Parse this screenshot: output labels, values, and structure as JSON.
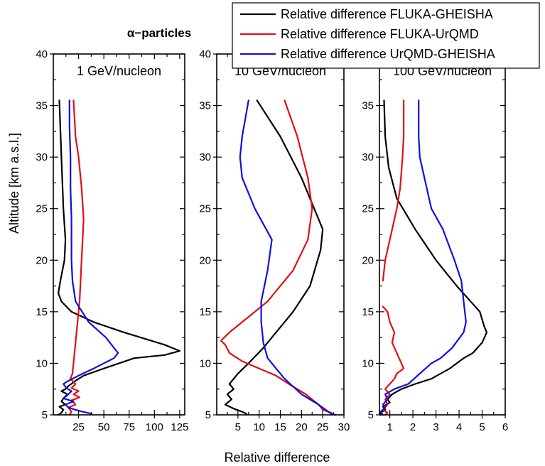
{
  "figure": {
    "title": "α−particles",
    "xlabel": "Relative difference",
    "ylabel": "Altitude [km a.s.l.]",
    "legend": [
      {
        "label": "Relative difference FLUKA-GHEISHA",
        "color": "#000000"
      },
      {
        "label": "Relative difference FLUKA-UrQMD",
        "color": "#e01010"
      },
      {
        "label": "Relative difference UrQMD-GHEISHA",
        "color": "#1010e0"
      }
    ]
  },
  "chart_data": [
    {
      "type": "line",
      "panel_label": "1 GeV/nucleon",
      "xlim": [
        0,
        130
      ],
      "ylim": [
        5,
        40
      ],
      "xticks": [
        25,
        50,
        75,
        100,
        125
      ],
      "yticks": [
        5,
        10,
        15,
        20,
        25,
        30,
        35,
        40
      ],
      "series": [
        {
          "name": "Relative difference FLUKA-GHEISHA",
          "color": "#000000",
          "points": [
            [
              6,
              35.5
            ],
            [
              8,
              30
            ],
            [
              10,
              25
            ],
            [
              12,
              22
            ],
            [
              11,
              20
            ],
            [
              7,
              18
            ],
            [
              5,
              16.8
            ],
            [
              8,
              16
            ],
            [
              18,
              15
            ],
            [
              40,
              14
            ],
            [
              70,
              13
            ],
            [
              110,
              11.8
            ],
            [
              125,
              11.2
            ],
            [
              110,
              10.8
            ],
            [
              80,
              10.5
            ],
            [
              50,
              9.5
            ],
            [
              30,
              8.8
            ],
            [
              22,
              8.3
            ],
            [
              15,
              7.8
            ],
            [
              12,
              7.5
            ],
            [
              8,
              7.3
            ],
            [
              14,
              7
            ],
            [
              10,
              6.6
            ],
            [
              8,
              6.3
            ],
            [
              12,
              6
            ],
            [
              6,
              5.8
            ],
            [
              10,
              5.5
            ],
            [
              8,
              5.2
            ],
            [
              5,
              5
            ]
          ]
        },
        {
          "name": "Relative difference FLUKA-UrQMD",
          "color": "#e01010",
          "points": [
            [
              20,
              35.5
            ],
            [
              22,
              32
            ],
            [
              25,
              30
            ],
            [
              28,
              27
            ],
            [
              30,
              24
            ],
            [
              28,
              20
            ],
            [
              26,
              16
            ],
            [
              22,
              12
            ],
            [
              19,
              9
            ],
            [
              17,
              8.5
            ],
            [
              22,
              8
            ],
            [
              18,
              7.6
            ],
            [
              25,
              7.3
            ],
            [
              20,
              7
            ],
            [
              26,
              6.7
            ],
            [
              18,
              6.4
            ],
            [
              22,
              6
            ],
            [
              15,
              5.7
            ],
            [
              18,
              5.3
            ],
            [
              16,
              5
            ]
          ]
        },
        {
          "name": "Relative difference UrQMD-GHEISHA",
          "color": "#1010e0",
          "points": [
            [
              16,
              35.5
            ],
            [
              16,
              33
            ],
            [
              17,
              30
            ],
            [
              17,
              27
            ],
            [
              18,
              24
            ],
            [
              18,
              20
            ],
            [
              19,
              18
            ],
            [
              22,
              16
            ],
            [
              35,
              14
            ],
            [
              52,
              12.5
            ],
            [
              64,
              11
            ],
            [
              60,
              10.5
            ],
            [
              40,
              9.5
            ],
            [
              25,
              8.8
            ],
            [
              15,
              8.3
            ],
            [
              10,
              8
            ],
            [
              13,
              7.6
            ],
            [
              18,
              7.3
            ],
            [
              15,
              7
            ],
            [
              10,
              6.6
            ],
            [
              20,
              6.3
            ],
            [
              12,
              6
            ],
            [
              15,
              5.7
            ],
            [
              25,
              5.4
            ],
            [
              38,
              5.1
            ]
          ]
        }
      ]
    },
    {
      "type": "line",
      "panel_label": "10 GeV/nucleon",
      "xlim": [
        0,
        30
      ],
      "ylim": [
        5,
        40
      ],
      "xticks": [
        5,
        10,
        15,
        20,
        25,
        30
      ],
      "yticks": [
        5,
        10,
        15,
        20,
        25,
        30,
        35,
        40
      ],
      "series": [
        {
          "name": "Relative difference FLUKA-GHEISHA",
          "color": "#000000",
          "points": [
            [
              9.5,
              35.5
            ],
            [
              15,
              32
            ],
            [
              20,
              28
            ],
            [
              23,
              25
            ],
            [
              25,
              23
            ],
            [
              24.5,
              21
            ],
            [
              22,
              17.5
            ],
            [
              18,
              15
            ],
            [
              14,
              13
            ],
            [
              11,
              11.5
            ],
            [
              7.5,
              10
            ],
            [
              5,
              9
            ],
            [
              4,
              8.5
            ],
            [
              3,
              8
            ],
            [
              4,
              7.5
            ],
            [
              2.5,
              7
            ],
            [
              3.5,
              6.5
            ],
            [
              2,
              6
            ],
            [
              4,
              5.6
            ],
            [
              6,
              5.3
            ],
            [
              7,
              5.1
            ],
            [
              7,
              5
            ]
          ]
        },
        {
          "name": "Relative difference FLUKA-UrQMD",
          "color": "#e01010",
          "points": [
            [
              16,
              35.5
            ],
            [
              19,
              32
            ],
            [
              21.5,
              28
            ],
            [
              22.5,
              25
            ],
            [
              21.5,
              22
            ],
            [
              18,
              19
            ],
            [
              12,
              16
            ],
            [
              6,
              14
            ],
            [
              3,
              13
            ],
            [
              1,
              12.2
            ],
            [
              2,
              11.8
            ],
            [
              3,
              11
            ],
            [
              6,
              10.2
            ],
            [
              10,
              9.5
            ],
            [
              14,
              8.8
            ],
            [
              17,
              8
            ],
            [
              21,
              7
            ],
            [
              24,
              6
            ],
            [
              25,
              5.5
            ],
            [
              27,
              5.2
            ],
            [
              27,
              5
            ]
          ]
        },
        {
          "name": "Relative difference UrQMD-GHEISHA",
          "color": "#1010e0",
          "points": [
            [
              7.5,
              35.5
            ],
            [
              6,
              32
            ],
            [
              5.5,
              30
            ],
            [
              6,
              28
            ],
            [
              9,
              25
            ],
            [
              13,
              22
            ],
            [
              12,
              19
            ],
            [
              10.5,
              16
            ],
            [
              10.5,
              14
            ],
            [
              11,
              12
            ],
            [
              12,
              10.5
            ],
            [
              14,
              9.5
            ],
            [
              16,
              8.5
            ],
            [
              20,
              7
            ],
            [
              24,
              6
            ],
            [
              26,
              5.4
            ],
            [
              27,
              5.1
            ],
            [
              28,
              5
            ]
          ]
        }
      ]
    },
    {
      "type": "line",
      "panel_label": "100 GeV/nucleon",
      "xlim": [
        0.55,
        6
      ],
      "ylim": [
        5,
        40
      ],
      "xticks": [
        1,
        2,
        3,
        4,
        5,
        6
      ],
      "yticks": [
        5,
        10,
        15,
        20,
        25,
        30,
        35,
        40
      ],
      "series": [
        {
          "name": "Relative difference FLUKA-GHEISHA",
          "color": "#000000",
          "points": [
            [
              0.75,
              35.5
            ],
            [
              0.8,
              32
            ],
            [
              0.95,
              29
            ],
            [
              1.3,
              26
            ],
            [
              2.1,
              23
            ],
            [
              3,
              20
            ],
            [
              3.9,
              17.5
            ],
            [
              4.5,
              16
            ],
            [
              4.9,
              15
            ],
            [
              5.1,
              13.5
            ],
            [
              5.2,
              13
            ],
            [
              5,
              12
            ],
            [
              4.6,
              11
            ],
            [
              4.2,
              10.5
            ],
            [
              3.6,
              9.5
            ],
            [
              2.8,
              8.5
            ],
            [
              2.1,
              8
            ],
            [
              1.5,
              7.5
            ],
            [
              1.1,
              7
            ],
            [
              0.9,
              6.5
            ],
            [
              1,
              6.2
            ],
            [
              0.7,
              5.8
            ],
            [
              0.8,
              5.5
            ],
            [
              0.6,
              5.2
            ],
            [
              0.6,
              5
            ]
          ]
        },
        {
          "name": "Relative difference FLUKA-UrQMD",
          "color": "#e01010",
          "points": [
            [
              1.6,
              35.5
            ],
            [
              1.6,
              32
            ],
            [
              1.55,
              30
            ],
            [
              1.45,
              27
            ],
            [
              1.3,
              25
            ],
            [
              1.1,
              23
            ],
            [
              0.9,
              21
            ],
            [
              0.8,
              20
            ],
            [
              0.7,
              18
            ],
            null,
            [
              0.7,
              15.5
            ],
            [
              0.9,
              15
            ],
            [
              1,
              14
            ],
            [
              1.2,
              13
            ],
            [
              1.1,
              12
            ],
            [
              1.3,
              11
            ],
            [
              1.5,
              10
            ],
            [
              1.6,
              9.5
            ],
            [
              1.3,
              9
            ],
            [
              1.2,
              8.5
            ],
            [
              1,
              8
            ],
            [
              0.8,
              7.5
            ],
            [
              1,
              7
            ],
            [
              0.8,
              6.5
            ],
            [
              0.9,
              6
            ],
            [
              0.7,
              5.5
            ],
            [
              0.9,
              5.2
            ],
            [
              0.8,
              5
            ]
          ]
        },
        {
          "name": "Relative difference UrQMD-GHEISHA",
          "color": "#1010e0",
          "points": [
            [
              2.25,
              35.5
            ],
            [
              2.25,
              32
            ],
            [
              2.3,
              30
            ],
            [
              2.5,
              28
            ],
            [
              2.8,
              25
            ],
            [
              3.3,
              23
            ],
            [
              3.8,
              20
            ],
            [
              4.1,
              18
            ],
            [
              4.2,
              16
            ],
            [
              4.3,
              14
            ],
            [
              4.2,
              13
            ],
            [
              3.7,
              11.5
            ],
            [
              3.2,
              10.5
            ],
            [
              2.8,
              10
            ],
            [
              2.3,
              9
            ],
            [
              1.8,
              8
            ],
            [
              1.2,
              7.5
            ],
            [
              0.8,
              7
            ],
            [
              0.9,
              6.5
            ],
            [
              0.7,
              6
            ],
            [
              0.8,
              5.7
            ],
            [
              0.6,
              5.3
            ],
            [
              0.7,
              5
            ]
          ]
        }
      ]
    }
  ]
}
